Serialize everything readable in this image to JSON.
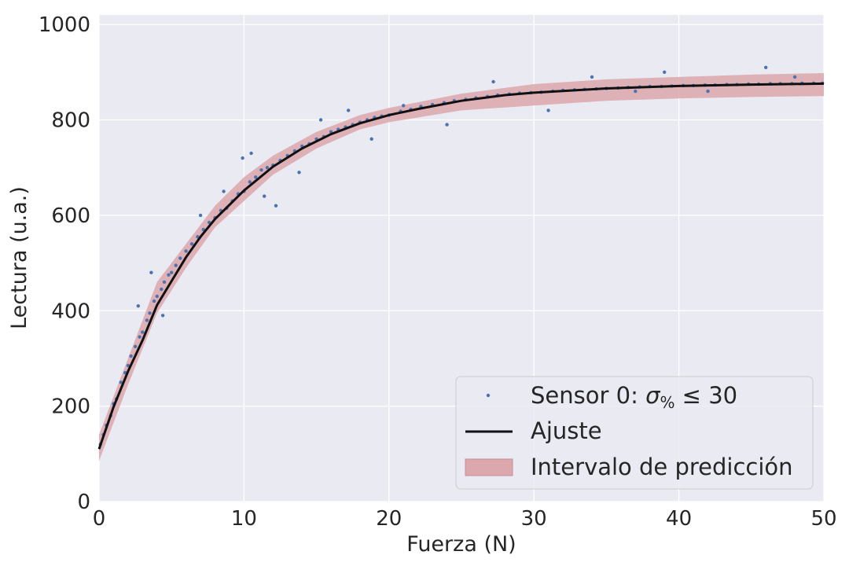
{
  "chart_data": {
    "type": "scatter",
    "xlabel": "Fuerza (N)",
    "ylabel": "Lectura (u.a.)",
    "xlim": [
      0,
      50
    ],
    "ylim": [
      0,
      1020
    ],
    "x_ticks": [
      0,
      10,
      20,
      30,
      40,
      50
    ],
    "y_ticks": [
      0,
      200,
      400,
      600,
      800,
      1000
    ],
    "grid": true,
    "legend_position": "lower-right",
    "legend": [
      {
        "label_main": "Sensor 0: ",
        "label_sigma": "σ",
        "label_sub": "%",
        "label_rest": " ≤ 30",
        "kind": "points",
        "color": "#4c72b0"
      },
      {
        "label": "Ajuste",
        "kind": "line",
        "color": "#111111"
      },
      {
        "label": "Intervalo de predicción",
        "kind": "band",
        "color": "#dca7ad"
      }
    ],
    "fit": {
      "name": "Ajuste",
      "x": [
        0,
        1,
        2,
        3,
        4,
        5,
        6,
        7,
        8,
        9,
        10,
        12,
        14,
        16,
        18,
        20,
        22,
        25,
        28,
        30,
        35,
        40,
        45,
        50
      ],
      "y": [
        110,
        198,
        273,
        338,
        412,
        462,
        512,
        555,
        592,
        622,
        652,
        702,
        740,
        770,
        793,
        810,
        823,
        840,
        852,
        857,
        866,
        871,
        874,
        876
      ]
    },
    "prediction_interval": {
      "name": "Intervalo de predicción",
      "x": [
        0,
        2,
        4,
        6,
        8,
        10,
        12,
        15,
        18,
        20,
        25,
        30,
        35,
        40,
        45,
        50
      ],
      "lower": [
        85,
        245,
        395,
        490,
        575,
        630,
        685,
        740,
        780,
        795,
        820,
        830,
        840,
        845,
        848,
        850
      ],
      "upper": [
        140,
        300,
        460,
        540,
        620,
        680,
        725,
        775,
        810,
        825,
        855,
        875,
        885,
        890,
        895,
        898
      ]
    },
    "sensor_points": {
      "name": "Sensor 0: σ% ≤ 30",
      "x": [
        0.1,
        0.3,
        0.5,
        0.8,
        1.0,
        1.2,
        1.5,
        1.8,
        2.0,
        2.2,
        2.5,
        2.8,
        3.0,
        3.3,
        3.5,
        3.8,
        4.0,
        4.3,
        4.5,
        4.8,
        5.0,
        5.3,
        5.6,
        6.0,
        6.4,
        6.8,
        7.2,
        7.6,
        8.0,
        8.4,
        8.8,
        9.2,
        9.6,
        10.0,
        10.4,
        10.8,
        11.2,
        11.6,
        12.0,
        12.5,
        13.0,
        13.5,
        14.0,
        14.5,
        15.0,
        15.5,
        16.0,
        16.5,
        17.0,
        17.5,
        18.0,
        18.5,
        19.0,
        19.5,
        20.0,
        20.8,
        21.5,
        22.2,
        23.0,
        23.8,
        24.5,
        25.3,
        26.0,
        26.8,
        27.5,
        28.3,
        29.0,
        29.8,
        30.5,
        31.3,
        32.0,
        32.8,
        33.5,
        34.3,
        35.0,
        35.8,
        36.5,
        37.3,
        38.0,
        38.8,
        39.5,
        40.3,
        41.0,
        41.8,
        42.5,
        43.3,
        44.0,
        44.8,
        45.5,
        46.3,
        47.0,
        47.8,
        48.5,
        49.3,
        49.9,
        2.7,
        3.6,
        4.4,
        7.0,
        8.6,
        9.9,
        10.5,
        11.4,
        12.2,
        13.8,
        15.3,
        17.2,
        18.8,
        21.0,
        24.0,
        27.2,
        31.0,
        34.0,
        37.0,
        39.0,
        42.0,
        46.0,
        48.0
      ],
      "y": [
        120,
        140,
        160,
        180,
        205,
        215,
        250,
        270,
        285,
        305,
        325,
        345,
        355,
        380,
        395,
        420,
        430,
        445,
        460,
        475,
        480,
        495,
        510,
        525,
        540,
        555,
        570,
        585,
        595,
        610,
        615,
        630,
        645,
        650,
        670,
        680,
        695,
        700,
        705,
        715,
        725,
        735,
        745,
        750,
        760,
        765,
        775,
        780,
        785,
        790,
        795,
        800,
        805,
        808,
        810,
        818,
        822,
        828,
        832,
        836,
        840,
        843,
        846,
        849,
        852,
        854,
        856,
        857,
        858,
        860,
        862,
        863,
        864,
        865,
        866,
        867,
        868,
        869,
        870,
        870,
        871,
        872,
        872,
        873,
        873,
        874,
        874,
        875,
        875,
        876,
        876,
        876,
        877,
        877,
        877,
        410,
        480,
        390,
        600,
        650,
        720,
        730,
        640,
        620,
        690,
        800,
        820,
        760,
        830,
        790,
        880,
        820,
        890,
        860,
        900,
        860,
        910,
        890
      ]
    }
  }
}
